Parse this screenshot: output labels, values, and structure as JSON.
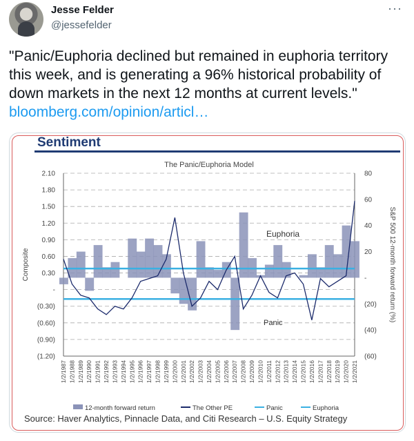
{
  "author": {
    "name": "Jesse Felder",
    "handle": "@jessefelder"
  },
  "more_icon": "more-horizontal-icon",
  "tweet": {
    "text": "\"Panic/Euphoria declined but remained in euphoria territory this week, and is generating a 96% historical probability of down markets in the next 12 months at current levels.\" ",
    "link": "bloomberg.com/opinion/articl…"
  },
  "image": {
    "heading": "Sentiment",
    "source": "Source: Haver Analytics, Pinnacle Data, and Citi Research – U.S. Equity Strategy"
  },
  "colors": {
    "link": "#1d9bf0",
    "heading": "#1f3b73",
    "panic_line": "#3ab0e2",
    "forward_return": "#8b93b8",
    "other_pe": "#1b2a6b"
  },
  "chart_data": {
    "type": "line",
    "title": "The Panic/Euphoria Model",
    "ylabel": "Composite",
    "y2label": "S&P 500 12-month forward return (%)",
    "ylim": [
      -1.2,
      2.1
    ],
    "y2lim": [
      -60,
      80
    ],
    "yticks": [
      "2.10",
      "1.80",
      "1.50",
      "1.20",
      "0.90",
      "0.60",
      "0.30",
      "-",
      "(0.30)",
      "(0.60)",
      "(0.90)",
      "(1.20)"
    ],
    "y2ticks": [
      "80",
      "60",
      "40",
      "20",
      "-",
      "(20)",
      "(40)",
      "(60)"
    ],
    "x_categories": [
      "1/2/1987",
      "1/2/1988",
      "1/2/1989",
      "1/2/1990",
      "1/2/1991",
      "1/2/1992",
      "1/2/1993",
      "1/2/1994",
      "1/2/1995",
      "1/2/1996",
      "1/2/1997",
      "1/2/1998",
      "1/2/1999",
      "1/2/2000",
      "1/2/2001",
      "1/2/2002",
      "1/2/2003",
      "1/2/2004",
      "1/2/2005",
      "1/2/2006",
      "1/2/2007",
      "1/2/2008",
      "1/2/2009",
      "1/2/2010",
      "1/2/2011",
      "1/2/2012",
      "1/2/2013",
      "1/2/2014",
      "1/2/2015",
      "1/2/2016",
      "1/2/2017",
      "1/2/2018",
      "1/2/2019",
      "1/2/2020",
      "1/2/2021"
    ],
    "thresholds": {
      "euphoria": 0.38,
      "panic": -0.17
    },
    "annotations": [
      "Euphoria",
      "Panic"
    ],
    "series": [
      {
        "name": "12-month forward return",
        "axis": "right",
        "values": [
          -5,
          15,
          20,
          -10,
          25,
          8,
          12,
          0,
          30,
          20,
          30,
          25,
          18,
          -12,
          -20,
          -25,
          28,
          8,
          6,
          12,
          -40,
          50,
          15,
          2,
          10,
          25,
          12,
          0,
          2,
          18,
          8,
          25,
          18,
          40,
          28
        ]
      },
      {
        "name": "The Other PE",
        "axis": "left",
        "values": [
          0.55,
          0.1,
          -0.1,
          -0.15,
          -0.35,
          -0.45,
          -0.3,
          -0.35,
          -0.15,
          0.15,
          0.2,
          0.25,
          0.55,
          1.3,
          0.3,
          -0.3,
          -0.15,
          0.15,
          0.0,
          0.35,
          0.6,
          -0.35,
          -0.1,
          0.25,
          -0.05,
          -0.15,
          0.25,
          0.3,
          0.1,
          -0.55,
          0.2,
          0.05,
          0.15,
          0.25,
          1.6
        ]
      }
    ],
    "legend": [
      "12-month forward return",
      "The Other PE",
      "Panic",
      "Euphoria"
    ],
    "legend_position": "bottom",
    "grid": true
  }
}
